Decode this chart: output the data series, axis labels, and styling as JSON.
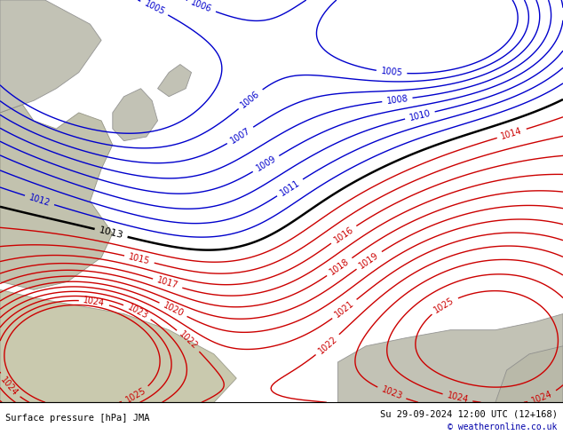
{
  "title_left": "Surface pressure [hPa] JMA",
  "title_right": "Su 29-09-2024 12:00 UTC (12+168)",
  "copyright": "© weatheronline.co.uk",
  "bg_color": "#d4edaa",
  "contour_levels_blue": [
    1005,
    1006,
    1007,
    1008,
    1009,
    1010,
    1011,
    1012
  ],
  "contour_levels_black": [
    1013
  ],
  "contour_levels_red": [
    1014,
    1015,
    1016,
    1017,
    1018,
    1019,
    1020,
    1021,
    1022,
    1023,
    1024,
    1025
  ],
  "label_fontsize": 7,
  "fig_width": 6.34,
  "fig_height": 4.9,
  "dpi": 100
}
